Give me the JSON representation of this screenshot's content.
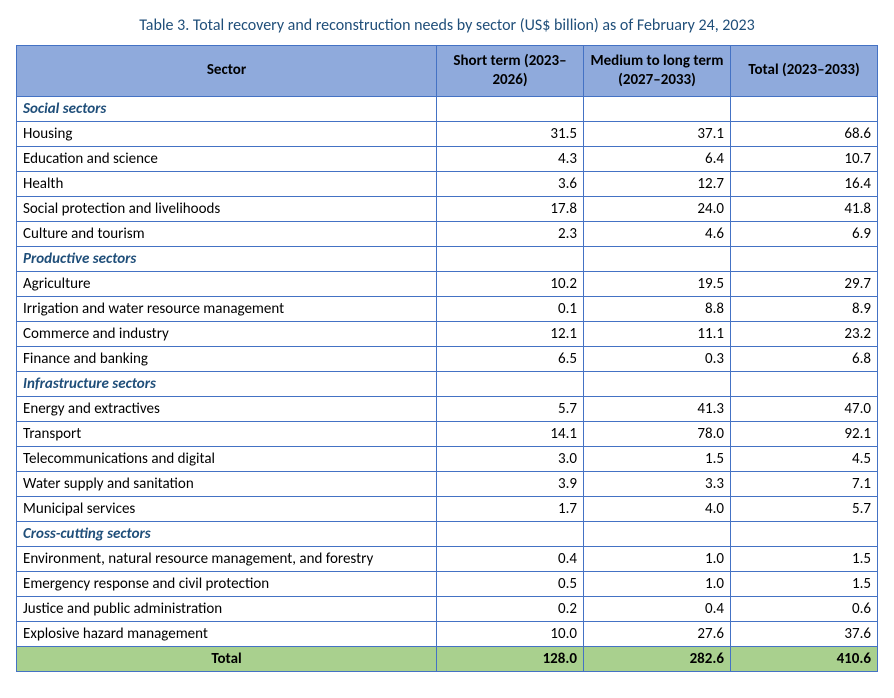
{
  "title": "Table 3. Total recovery and reconstruction needs by sector (US$ billion) as of February 24, 2023",
  "colors": {
    "header_bg": "#8faadc",
    "border": "#4472c4",
    "section_text": "#1f4e79",
    "total_bg": "#a9d08e",
    "title_text": "#1f4e79"
  },
  "columns": [
    {
      "label": "Sector"
    },
    {
      "label": "Short term (2023–2026)"
    },
    {
      "label": "Medium to long term (2027–2033)"
    },
    {
      "label": "Total\n(2023–2033)"
    }
  ],
  "groups": [
    {
      "name": "Social sectors",
      "rows": [
        {
          "label": "Housing",
          "short": "31.5",
          "med": "37.1",
          "total": "68.6"
        },
        {
          "label": "Education and science",
          "short": "4.3",
          "med": "6.4",
          "total": "10.7"
        },
        {
          "label": "Health",
          "short": "3.6",
          "med": "12.7",
          "total": "16.4"
        },
        {
          "label": "Social protection and livelihoods",
          "short": "17.8",
          "med": "24.0",
          "total": "41.8"
        },
        {
          "label": "Culture and tourism",
          "short": "2.3",
          "med": "4.6",
          "total": "6.9"
        }
      ]
    },
    {
      "name": "Productive sectors",
      "rows": [
        {
          "label": "Agriculture",
          "short": "10.2",
          "med": "19.5",
          "total": "29.7"
        },
        {
          "label": "Irrigation and water resource management",
          "short": "0.1",
          "med": "8.8",
          "total": "8.9"
        },
        {
          "label": "Commerce and industry",
          "short": "12.1",
          "med": "11.1",
          "total": "23.2"
        },
        {
          "label": "Finance and banking",
          "short": "6.5",
          "med": "0.3",
          "total": "6.8"
        }
      ]
    },
    {
      "name": "Infrastructure sectors",
      "rows": [
        {
          "label": "Energy and extractives",
          "short": "5.7",
          "med": "41.3",
          "total": "47.0"
        },
        {
          "label": "Transport",
          "short": "14.1",
          "med": "78.0",
          "total": "92.1"
        },
        {
          "label": "Telecommunications and digital",
          "short": "3.0",
          "med": "1.5",
          "total": "4.5"
        },
        {
          "label": "Water supply and sanitation",
          "short": "3.9",
          "med": "3.3",
          "total": "7.1"
        },
        {
          "label": "Municipal services",
          "short": "1.7",
          "med": "4.0",
          "total": "5.7"
        }
      ]
    },
    {
      "name": "Cross-cutting sectors",
      "rows": [
        {
          "label": "Environment, natural resource management, and forestry",
          "short": "0.4",
          "med": "1.0",
          "total": "1.5"
        },
        {
          "label": "Emergency response and civil protection",
          "short": "0.5",
          "med": "1.0",
          "total": "1.5"
        },
        {
          "label": "Justice and public administration",
          "short": "0.2",
          "med": "0.4",
          "total": "0.6"
        },
        {
          "label": "Explosive hazard management",
          "short": "10.0",
          "med": "27.6",
          "total": "37.6"
        }
      ]
    }
  ],
  "grand_total": {
    "label": "Total",
    "short": "128.0",
    "med": "282.6",
    "total": "410.6"
  }
}
